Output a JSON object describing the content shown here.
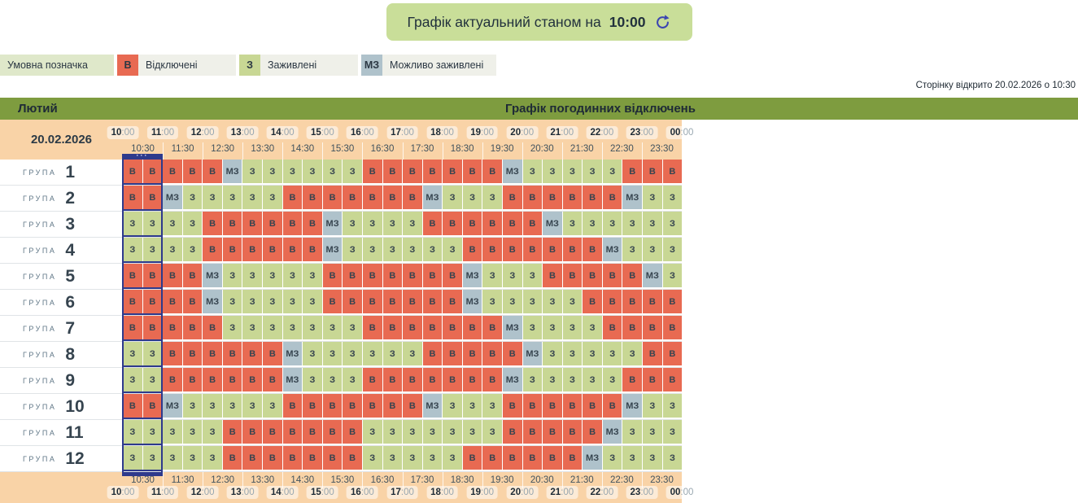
{
  "header": {
    "status_label": "Графік актуальний станом на",
    "status_time": "10:00"
  },
  "legend": {
    "title": "Умовна позначка",
    "items": [
      {
        "code": "В",
        "label": "Відключені",
        "color": "#e86a52"
      },
      {
        "code": "З",
        "label": "Заживлені",
        "color": "#c8d794"
      },
      {
        "code": "МЗ",
        "label": "Можливо заживлені",
        "color": "#afc2cb"
      }
    ]
  },
  "page_opened_note": "Сторінку відкрито 20.02.2026 о 10:30",
  "table": {
    "month": "Лютий",
    "title": "Графік погодинних відключень",
    "date": "20.02.2026",
    "hour_labels": [
      "10:00",
      "11:00",
      "12:00",
      "13:00",
      "14:00",
      "15:00",
      "16:00",
      "17:00",
      "18:00",
      "19:00",
      "20:00",
      "21:00",
      "22:00",
      "23:00",
      "00:00"
    ],
    "half_hour_labels": [
      "10:30",
      "11:30",
      "12:30",
      "13:30",
      "14:30",
      "15:30",
      "16:30",
      "17:30",
      "18:30",
      "19:30",
      "20:30",
      "21:30",
      "22:30",
      "23:30"
    ],
    "current_marker": {
      "dots": "···",
      "start_cell": 0,
      "span": 2
    },
    "group_word": "ГРУПА",
    "groups": [
      {
        "number": "1",
        "cells": [
          "В",
          "В",
          "В",
          "В",
          "В",
          "МЗ",
          "З",
          "З",
          "З",
          "З",
          "З",
          "З",
          "В",
          "В",
          "В",
          "В",
          "В",
          "В",
          "В",
          "МЗ",
          "З",
          "З",
          "З",
          "З",
          "З",
          "В",
          "В",
          "В"
        ]
      },
      {
        "number": "2",
        "cells": [
          "В",
          "В",
          "МЗ",
          "З",
          "З",
          "З",
          "З",
          "З",
          "В",
          "В",
          "В",
          "В",
          "В",
          "В",
          "В",
          "МЗ",
          "З",
          "З",
          "З",
          "В",
          "В",
          "В",
          "В",
          "В",
          "В",
          "МЗ",
          "З",
          "З"
        ]
      },
      {
        "number": "3",
        "cells": [
          "З",
          "З",
          "З",
          "З",
          "В",
          "В",
          "В",
          "В",
          "В",
          "В",
          "МЗ",
          "З",
          "З",
          "З",
          "З",
          "В",
          "В",
          "В",
          "В",
          "В",
          "В",
          "МЗ",
          "З",
          "З",
          "З",
          "З",
          "З",
          "З"
        ]
      },
      {
        "number": "4",
        "cells": [
          "З",
          "З",
          "З",
          "З",
          "В",
          "В",
          "В",
          "В",
          "В",
          "В",
          "МЗ",
          "З",
          "З",
          "З",
          "З",
          "З",
          "З",
          "В",
          "В",
          "В",
          "В",
          "В",
          "В",
          "В",
          "МЗ",
          "З",
          "З",
          "З"
        ]
      },
      {
        "number": "5",
        "cells": [
          "В",
          "В",
          "В",
          "В",
          "МЗ",
          "З",
          "З",
          "З",
          "З",
          "З",
          "В",
          "В",
          "В",
          "В",
          "В",
          "В",
          "В",
          "МЗ",
          "З",
          "З",
          "З",
          "В",
          "В",
          "В",
          "В",
          "В",
          "МЗ",
          "З"
        ]
      },
      {
        "number": "6",
        "cells": [
          "В",
          "В",
          "В",
          "В",
          "МЗ",
          "З",
          "З",
          "З",
          "З",
          "З",
          "В",
          "В",
          "В",
          "В",
          "В",
          "В",
          "В",
          "МЗ",
          "З",
          "З",
          "З",
          "З",
          "З",
          "В",
          "В",
          "В",
          "В",
          "В"
        ]
      },
      {
        "number": "7",
        "cells": [
          "В",
          "В",
          "В",
          "В",
          "В",
          "З",
          "З",
          "З",
          "З",
          "З",
          "З",
          "З",
          "В",
          "В",
          "В",
          "В",
          "В",
          "В",
          "В",
          "МЗ",
          "З",
          "З",
          "З",
          "З",
          "В",
          "В",
          "В",
          "В"
        ]
      },
      {
        "number": "8",
        "cells": [
          "З",
          "З",
          "В",
          "В",
          "В",
          "В",
          "В",
          "В",
          "МЗ",
          "З",
          "З",
          "З",
          "З",
          "З",
          "З",
          "В",
          "В",
          "В",
          "В",
          "В",
          "МЗ",
          "З",
          "З",
          "З",
          "З",
          "З",
          "В",
          "В"
        ]
      },
      {
        "number": "9",
        "cells": [
          "З",
          "З",
          "В",
          "В",
          "В",
          "В",
          "В",
          "В",
          "МЗ",
          "З",
          "З",
          "З",
          "В",
          "В",
          "В",
          "В",
          "В",
          "В",
          "В",
          "МЗ",
          "З",
          "З",
          "З",
          "З",
          "З",
          "В",
          "В",
          "В"
        ]
      },
      {
        "number": "10",
        "cells": [
          "В",
          "В",
          "МЗ",
          "З",
          "З",
          "З",
          "З",
          "З",
          "В",
          "В",
          "В",
          "В",
          "В",
          "В",
          "В",
          "МЗ",
          "З",
          "З",
          "З",
          "В",
          "В",
          "В",
          "В",
          "В",
          "В",
          "МЗ",
          "З",
          "З"
        ]
      },
      {
        "number": "11",
        "cells": [
          "З",
          "З",
          "З",
          "З",
          "З",
          "В",
          "В",
          "В",
          "В",
          "В",
          "В",
          "В",
          "З",
          "З",
          "З",
          "З",
          "З",
          "З",
          "З",
          "В",
          "В",
          "В",
          "В",
          "В",
          "МЗ",
          "З",
          "З",
          "З"
        ]
      },
      {
        "number": "12",
        "cells": [
          "З",
          "З",
          "З",
          "З",
          "З",
          "В",
          "В",
          "В",
          "В",
          "В",
          "В",
          "В",
          "З",
          "З",
          "З",
          "З",
          "З",
          "В",
          "В",
          "В",
          "В",
          "В",
          "В",
          "МЗ",
          "З",
          "З",
          "З",
          "З"
        ]
      }
    ]
  },
  "colors": {
    "В": "#e86a52",
    "З": "#c8d794",
    "МЗ": "#afc2cb",
    "peach": "#f9d3a7",
    "olive_bar": "#7e9c3f",
    "marker_navy": "#2e3a8c",
    "button_green": "#c9de99",
    "refresh_icon": "#3c46b2"
  }
}
